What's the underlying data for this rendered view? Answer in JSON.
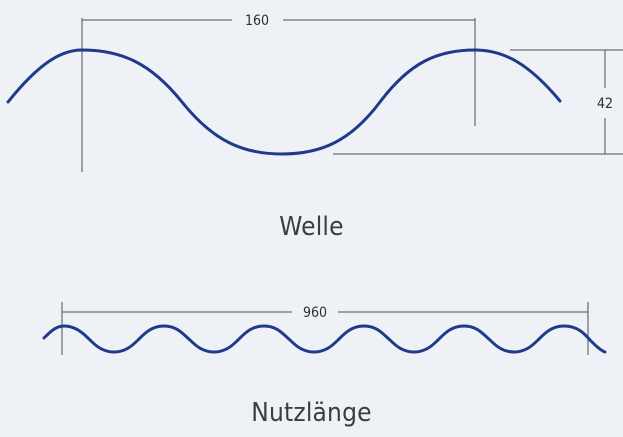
{
  "diagram": {
    "single_wave": {
      "caption": "Welle",
      "width_label": "160",
      "height_label": "42"
    },
    "full_profile": {
      "caption": "Nutzlänge",
      "width_label": "960"
    },
    "colors": {
      "background": "#eef1f5",
      "wave": "#1f3a8a",
      "dimension_lines": "#4a4f55",
      "text": "#2b2f33"
    }
  }
}
